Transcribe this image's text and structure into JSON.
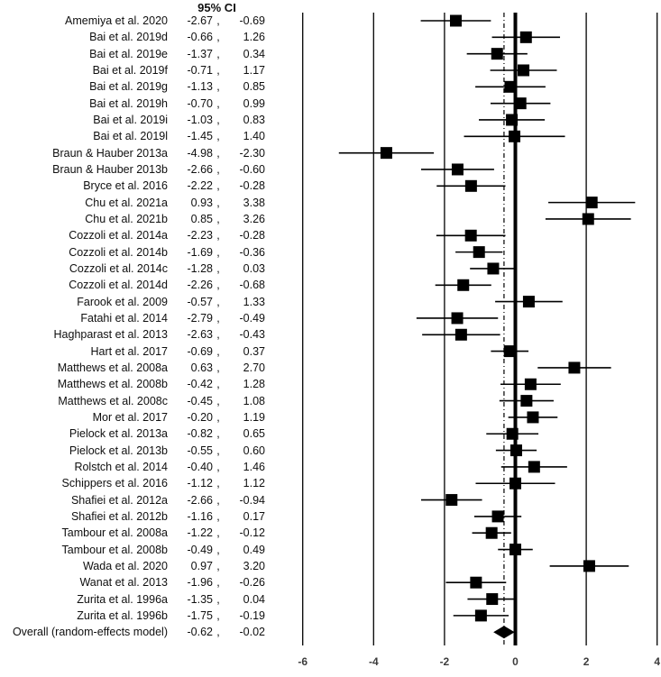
{
  "figure": {
    "ci_header": "95% CI",
    "ci_separator": ",",
    "background_color": "#ffffff",
    "text_color": "#0f0f0f",
    "marker_color": "#000000",
    "axis_label_color": "#3c3c3c"
  },
  "chart_data": {
    "type": "forest",
    "title": "",
    "ci_column_header": "95% CI",
    "xlabel": "",
    "ylabel": "",
    "xlim": [
      -6,
      4
    ],
    "x_ticks": [
      -6,
      -4,
      -2,
      0,
      2,
      4
    ],
    "gridlines": [
      -6,
      -4,
      -2,
      2,
      4
    ],
    "reference_line_x": 0,
    "overall_estimate_line_x": -0.32,
    "marker_position": "ci_midpoint",
    "studies": [
      {
        "label": "Amemiya et al. 2020",
        "ci_lower": -2.67,
        "ci_upper": -0.69
      },
      {
        "label": "Bai et al. 2019d",
        "ci_lower": -0.66,
        "ci_upper": 1.26
      },
      {
        "label": "Bai et al. 2019e",
        "ci_lower": -1.37,
        "ci_upper": 0.34
      },
      {
        "label": "Bai et al. 2019f",
        "ci_lower": -0.71,
        "ci_upper": 1.17
      },
      {
        "label": "Bai et al. 2019g",
        "ci_lower": -1.13,
        "ci_upper": 0.85
      },
      {
        "label": "Bai et al. 2019h",
        "ci_lower": -0.7,
        "ci_upper": 0.99
      },
      {
        "label": "Bai et al. 2019i",
        "ci_lower": -1.03,
        "ci_upper": 0.83
      },
      {
        "label": "Bai et al. 2019l",
        "ci_lower": -1.45,
        "ci_upper": 1.4
      },
      {
        "label": "Braun & Hauber 2013a",
        "ci_lower": -4.98,
        "ci_upper": -2.3
      },
      {
        "label": "Braun & Hauber 2013b",
        "ci_lower": -2.66,
        "ci_upper": -0.6
      },
      {
        "label": "Bryce et al. 2016",
        "ci_lower": -2.22,
        "ci_upper": -0.28
      },
      {
        "label": "Chu et al. 2021a",
        "ci_lower": 0.93,
        "ci_upper": 3.38
      },
      {
        "label": "Chu et al. 2021b",
        "ci_lower": 0.85,
        "ci_upper": 3.26
      },
      {
        "label": "Cozzoli et al. 2014a",
        "ci_lower": -2.23,
        "ci_upper": -0.28
      },
      {
        "label": "Cozzoli et al. 2014b",
        "ci_lower": -1.69,
        "ci_upper": -0.36
      },
      {
        "label": "Cozzoli et al. 2014c",
        "ci_lower": -1.28,
        "ci_upper": 0.03
      },
      {
        "label": "Cozzoli et al. 2014d",
        "ci_lower": -2.26,
        "ci_upper": -0.68
      },
      {
        "label": "Farook et al. 2009",
        "ci_lower": -0.57,
        "ci_upper": 1.33
      },
      {
        "label": "Fatahi et al. 2014",
        "ci_lower": -2.79,
        "ci_upper": -0.49
      },
      {
        "label": "Haghparast et al. 2013",
        "ci_lower": -2.63,
        "ci_upper": -0.43
      },
      {
        "label": "Hart et al. 2017",
        "ci_lower": -0.69,
        "ci_upper": 0.37
      },
      {
        "label": "Matthews et al. 2008a",
        "ci_lower": 0.63,
        "ci_upper": 2.7
      },
      {
        "label": "Matthews et al. 2008b",
        "ci_lower": -0.42,
        "ci_upper": 1.28
      },
      {
        "label": "Matthews et al. 2008c",
        "ci_lower": -0.45,
        "ci_upper": 1.08
      },
      {
        "label": "Mor et al. 2017",
        "ci_lower": -0.2,
        "ci_upper": 1.19
      },
      {
        "label": "Pielock et al. 2013a",
        "ci_lower": -0.82,
        "ci_upper": 0.65
      },
      {
        "label": "Pielock et al. 2013b",
        "ci_lower": -0.55,
        "ci_upper": 0.6
      },
      {
        "label": "Rolstch et al. 2014",
        "ci_lower": -0.4,
        "ci_upper": 1.46
      },
      {
        "label": "Schippers et al. 2016",
        "ci_lower": -1.12,
        "ci_upper": 1.12
      },
      {
        "label": "Shafiei et al. 2012a",
        "ci_lower": -2.66,
        "ci_upper": -0.94
      },
      {
        "label": "Shafiei et al. 2012b",
        "ci_lower": -1.16,
        "ci_upper": 0.17
      },
      {
        "label": "Tambour et al. 2008a",
        "ci_lower": -1.22,
        "ci_upper": -0.12
      },
      {
        "label": "Tambour et al. 2008b",
        "ci_lower": -0.49,
        "ci_upper": 0.49
      },
      {
        "label": "Wada et al. 2020",
        "ci_lower": 0.97,
        "ci_upper": 3.2
      },
      {
        "label": "Wanat et al. 2013",
        "ci_lower": -1.96,
        "ci_upper": -0.26
      },
      {
        "label": "Zurita et al. 1996a",
        "ci_lower": -1.35,
        "ci_upper": 0.04
      },
      {
        "label": "Zurita et al. 1996b",
        "ci_lower": -1.75,
        "ci_upper": -0.19
      }
    ],
    "overall": {
      "label": "Overall (random-effects model)",
      "ci_lower": -0.62,
      "ci_upper": -0.02,
      "marker": "diamond"
    }
  }
}
